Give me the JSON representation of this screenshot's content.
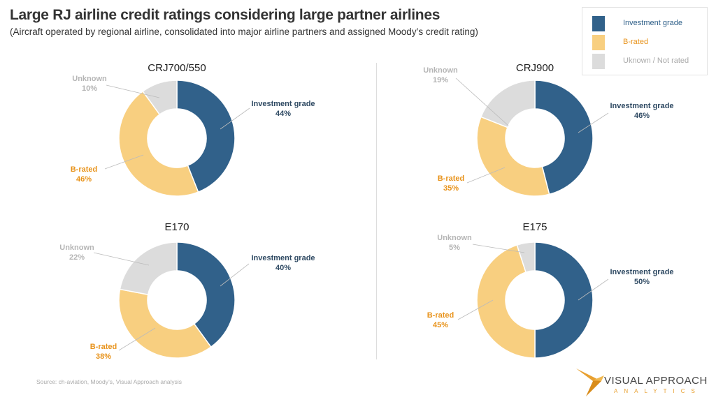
{
  "title": "Large RJ airline credit ratings considering large partner airlines",
  "subtitle": "(Aircraft operated by regional airline, consolidated into major airline partners and assigned Moody’s credit rating)",
  "legend": [
    {
      "label": "Investment grade",
      "color": "#31618a",
      "text_color": "#31618a"
    },
    {
      "label": "B-rated",
      "color": "#f8cf80",
      "text_color": "#e8931b"
    },
    {
      "label": "Uknown / Not rated",
      "color": "#dcdcdc",
      "text_color": "#aaaaaa"
    }
  ],
  "source": "Source: ch-aviation, Moody’s, Visual Approach analysis",
  "logo": {
    "line1": "VISUAL APPROACH",
    "line2": "ANALYTICS"
  },
  "chart_data": [
    {
      "type": "pie",
      "title": "CRJ700/550",
      "categories": [
        "Investment grade",
        "B-rated",
        "Unknown"
      ],
      "values": [
        44,
        46,
        10
      ],
      "labels": [
        "44%",
        "46%",
        "10%"
      ]
    },
    {
      "type": "pie",
      "title": "CRJ900",
      "categories": [
        "Investment grade",
        "B-rated",
        "Unknown"
      ],
      "values": [
        46,
        35,
        19
      ],
      "labels": [
        "46%",
        "35%",
        "19%"
      ]
    },
    {
      "type": "pie",
      "title": "E170",
      "categories": [
        "Investment grade",
        "B-rated",
        "Unknown"
      ],
      "values": [
        40,
        38,
        22
      ],
      "labels": [
        "40%",
        "38%",
        "22%"
      ]
    },
    {
      "type": "pie",
      "title": "E175",
      "categories": [
        "Investment grade",
        "B-rated",
        "Unknown"
      ],
      "values": [
        50,
        45,
        5
      ],
      "labels": [
        "50%",
        "45%",
        "5%"
      ]
    }
  ]
}
